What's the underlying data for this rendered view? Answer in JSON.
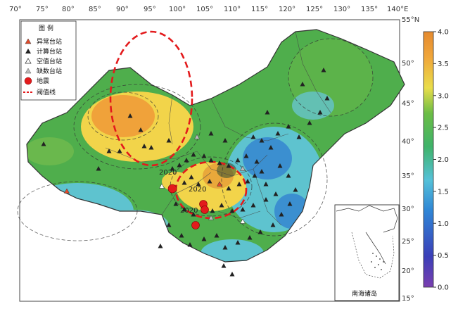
{
  "map": {
    "lon_labels": [
      "70°",
      "75°",
      "80°",
      "85°",
      "90°",
      "95°",
      "100°",
      "105°",
      "110°",
      "115°",
      "120°",
      "125°",
      "130°",
      "135°",
      "140°E"
    ],
    "lat_labels": [
      "55°N",
      "50°",
      "45°",
      "40°",
      "35°",
      "30°",
      "25°",
      "20°",
      "15°"
    ]
  },
  "legend": {
    "title": "图 例",
    "items": [
      {
        "label": "异常台站",
        "symbol": "triangle",
        "color": "#e04a2a"
      },
      {
        "label": "计算台站",
        "symbol": "triangle",
        "color": "#222222"
      },
      {
        "label": "空值台站",
        "symbol": "triangle-open",
        "color": "#ffffff"
      },
      {
        "label": "缺数台站",
        "symbol": "triangle",
        "color": "#bbbbbb"
      },
      {
        "label": "地震",
        "symbol": "circle",
        "color": "#e31a1c"
      },
      {
        "label": "阈值线",
        "symbol": "dashed-line",
        "color": "#e31a1c"
      }
    ]
  },
  "colorbar": {
    "ticks": [
      "4.0",
      "3.5",
      "3.0",
      "2.5",
      "2.0",
      "1.5",
      "1.0",
      "0.5",
      "0.0"
    ],
    "min": 0.0,
    "max": 4.0
  },
  "inset": {
    "label": "南海诸岛"
  },
  "annotations": {
    "quake_1": "2020",
    "quake_2": "2020",
    "quake_3": "2020"
  },
  "colors": {
    "green": "#4fae4c",
    "yellow": "#f2d44a",
    "orange": "#f0a23a",
    "cyan": "#5ec3cf",
    "blue": "#3b8fd0",
    "threshold": "#e31a1c"
  }
}
